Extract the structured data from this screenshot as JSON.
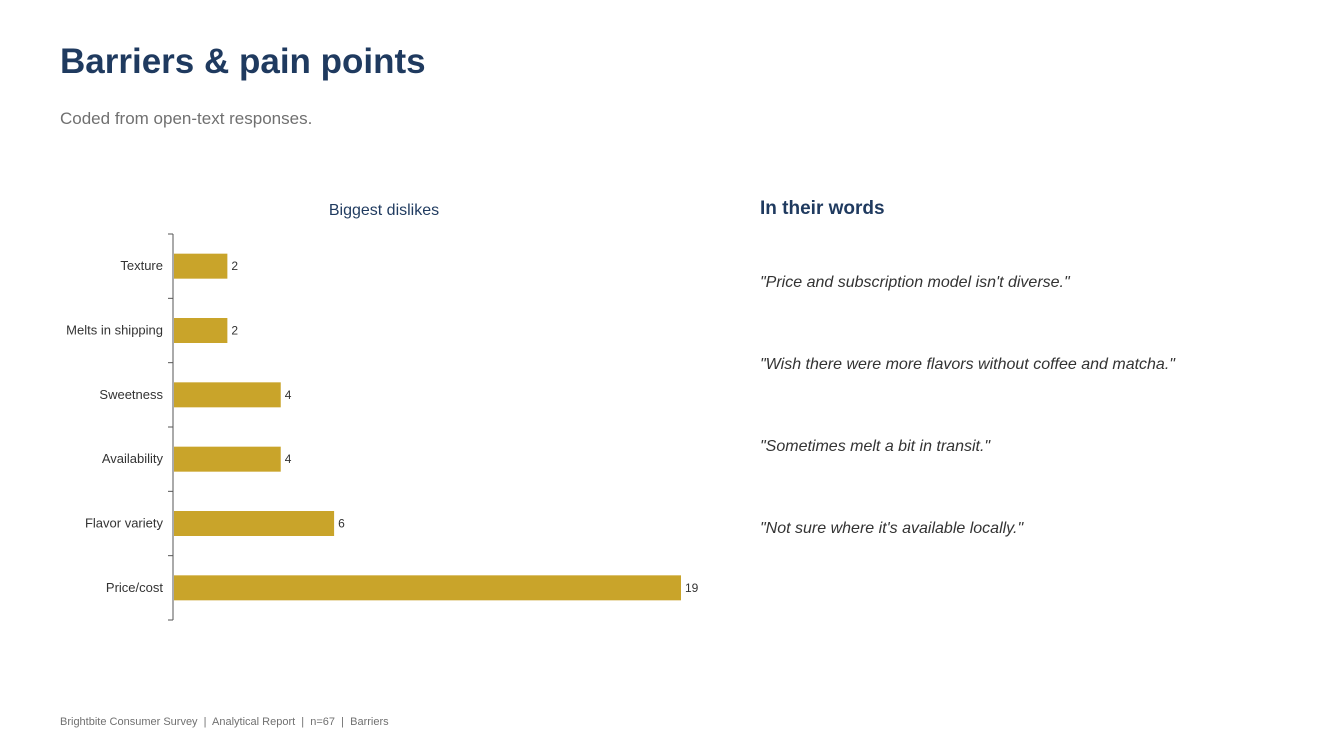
{
  "header": {
    "title": "Barriers & pain points",
    "subtitle": "Coded from open-text responses."
  },
  "chart_data": {
    "type": "bar",
    "orientation": "horizontal",
    "title": "Biggest dislikes",
    "categories": [
      "Texture",
      "Melts in shipping",
      "Sweetness",
      "Availability",
      "Flavor variety",
      "Price/cost"
    ],
    "values": [
      2,
      2,
      4,
      4,
      6,
      19
    ],
    "xlabel": "",
    "ylabel": "",
    "xlim": [
      0,
      20
    ],
    "grid": false,
    "legend": "none",
    "bar_color": "#c9a42a"
  },
  "quotes": {
    "heading": "In their words",
    "items": [
      "\"Price and subscription model isn't diverse.\"",
      "\"Wish there were more flavors without coffee and matcha.\"",
      "\"Sometimes melt a bit in transit.\"",
      "\"Not sure where it's available locally.\""
    ]
  },
  "footer": {
    "text": "Brightbite Consumer Survey  |  Analytical Report  |  n=67  |  Barriers"
  },
  "colors": {
    "title": "#1f3a5f",
    "subtitle": "#707070",
    "bar": "#c9a42a",
    "axis": "#555555"
  }
}
